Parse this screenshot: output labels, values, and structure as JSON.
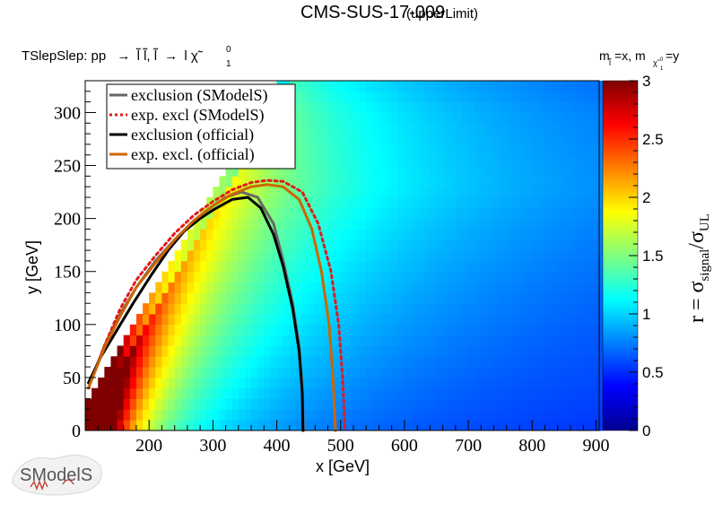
{
  "chart_data": {
    "type": "heatmap",
    "title": "CMS-SUS-17-009",
    "title_suffix": "(upperLimit)",
    "process": {
      "prefix": "TSlepSlep: pp",
      "arrow": "→",
      "sleptons": "l̃ l̃, l̃",
      "decay": "l χ̃",
      "decay_sup": "0",
      "decay_sub": "1"
    },
    "mass_note": {
      "left": "m",
      "left_sub": "l̃",
      "mid": "=x, m",
      "mid_sub": "χ̃",
      "mid_subsup": "0",
      "mid_subsub": "1",
      "right": "=y"
    },
    "xlabel": "x [GeV]",
    "ylabel": "y [GeV]",
    "zlabel": {
      "main": "r = σ",
      "sub1": "signal",
      "slash": "/σ",
      "sub2": "UL"
    },
    "xlim": [
      100,
      905
    ],
    "ylim": [
      0,
      330
    ],
    "zlim": [
      0,
      3
    ],
    "xticks": [
      "200",
      "300",
      "400",
      "500",
      "600",
      "700",
      "800",
      "900"
    ],
    "xtick_values": [
      200,
      300,
      400,
      500,
      600,
      700,
      800,
      900
    ],
    "yticks": [
      "0",
      "50",
      "100",
      "150",
      "200",
      "250",
      "300"
    ],
    "ytick_values": [
      0,
      50,
      100,
      150,
      200,
      250,
      300
    ],
    "zticks": [
      "0",
      "0.5",
      "1",
      "1.5",
      "2",
      "2.5",
      "3"
    ],
    "ztick_values": [
      0,
      0.5,
      1,
      1.5,
      2,
      2.5,
      3
    ],
    "colormap": [
      "#00008f",
      "#0000ff",
      "#007fff",
      "#00ffff",
      "#7fff7f",
      "#ffff00",
      "#ff7f00",
      "#ff0000",
      "#7f0000"
    ],
    "grid": false,
    "legend_position": "top-left",
    "legend": [
      {
        "label": "exclusion (SModelS)",
        "color": "#666666",
        "style": "solid"
      },
      {
        "label": "exp. excl (SModelS)",
        "color": "#e41a1c",
        "style": "dotted"
      },
      {
        "label": "exclusion (official)",
        "color": "#000000",
        "style": "solid"
      },
      {
        "label": "exp. excl. (official)",
        "color": "#cc6600",
        "style": "solid"
      }
    ],
    "series": [
      {
        "name": "exclusion (SModelS)",
        "x": [
          105,
          130,
          155,
          180,
          210,
          240,
          270,
          300,
          320,
          345,
          370,
          395,
          410,
          425,
          435,
          440,
          442
        ],
        "y": [
          40,
          80,
          110,
          135,
          160,
          180,
          198,
          212,
          220,
          225,
          220,
          195,
          160,
          120,
          80,
          40,
          0
        ]
      },
      {
        "name": "exp. excl (SModelS)",
        "x": [
          105,
          130,
          155,
          180,
          210,
          240,
          270,
          300,
          330,
          360,
          385,
          410,
          440,
          465,
          485,
          497,
          503,
          507
        ],
        "y": [
          40,
          80,
          115,
          142,
          165,
          186,
          203,
          216,
          227,
          234,
          236,
          235,
          225,
          195,
          150,
          100,
          50,
          0
        ]
      },
      {
        "name": "exclusion (official)",
        "x": [
          105,
          125,
          150,
          175,
          205,
          230,
          255,
          280,
          300,
          330,
          355,
          375,
          395,
          410,
          425,
          435,
          440,
          441
        ],
        "y": [
          45,
          70,
          95,
          120,
          148,
          170,
          188,
          200,
          208,
          218,
          220,
          210,
          185,
          155,
          115,
          75,
          35,
          0
        ]
      },
      {
        "name": "exp. excl. (official)",
        "x": [
          105,
          130,
          155,
          180,
          210,
          240,
          270,
          300,
          330,
          360,
          385,
          410,
          435,
          455,
          470,
          482,
          488,
          492
        ],
        "y": [
          40,
          78,
          108,
          135,
          158,
          180,
          198,
          212,
          223,
          230,
          232,
          230,
          218,
          190,
          150,
          100,
          50,
          0
        ]
      }
    ]
  },
  "logo": {
    "text": "SModelS"
  }
}
